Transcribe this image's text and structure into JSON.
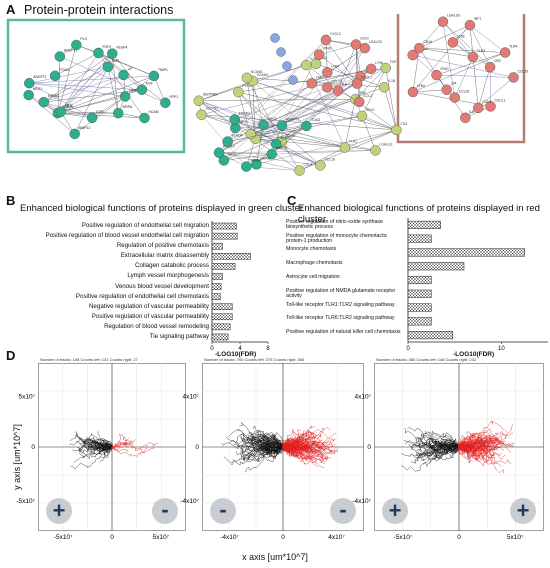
{
  "panel_a": {
    "letter": "A",
    "title": "Protein-protein interactions",
    "cluster_colors": {
      "green": "#2eae8c",
      "red": "#e07a75",
      "yellowgreen": "#bfd37a",
      "blue": "#8aa6e0",
      "gray": "#9a9a9a"
    },
    "box_colors": {
      "green_box": "#59b89a",
      "red_box": "#b57d72"
    },
    "green_nodes": [
      "SPP1",
      "MMP13",
      "HCAM",
      "SIRPA",
      "IGF2",
      "MMP12",
      "PLAUR",
      "MET",
      "ERBB3",
      "NRG1",
      "ANGPT1",
      "ITGA3",
      "ANGPT2",
      "PLG",
      "FGF2",
      "IGF1",
      "VEGFA",
      "LIF",
      "TIMP1",
      "EGF"
    ],
    "red_nodes": [
      "CCL20",
      "CXCL1",
      "CCL2",
      "IL6",
      "CCL26",
      "LTA",
      "LTB4",
      "IFNG",
      "CXCL2",
      "CD14",
      "LGALS3",
      "LY96",
      "IRF7",
      "TLR2",
      "TLR4",
      "CR2"
    ],
    "other_nodes": [
      "CD4",
      "LGALS3",
      "TLR1",
      "CCL18",
      "CCL4",
      "CCL3",
      "CCL22",
      "ACKR1",
      "SLC7A1",
      "SERPINE",
      "PTX3",
      "VCAM1",
      "NCAM1",
      "ICAM1",
      "CD2",
      "FGF",
      "TNF",
      "IL1B",
      "SELE"
    ]
  },
  "panel_b": {
    "letter": "B",
    "title": "Enhanced biological functions of proteins displayed in green cluster",
    "chart_data": {
      "type": "bar",
      "orientation": "horizontal",
      "categories": [
        "Positive regulation of endothelial cell migration",
        "Positive regulation of blood vessel endothelial cell migration",
        "Regulation of positive chemotaxis",
        "Extracellular matrix disassembly",
        "Collagen catabolic process",
        "Lymph vessel morphogenesis",
        "Venous blood vessel development",
        "Positive regulation of endothelial cell chemotaxis",
        "Negative regulation of vascular permeability",
        "Positive regulation of vascular permeability",
        "Regulation of blood vessel remodeling",
        "Tie signaling pathway"
      ],
      "values": [
        3.5,
        3.6,
        1.5,
        5.5,
        3.3,
        1.5,
        1.3,
        1.2,
        2.9,
        2.9,
        2.6,
        2.3
      ],
      "xlabel": "-LOG10(FDR)",
      "xlim": [
        0,
        8
      ],
      "xticks": [
        "0",
        "4",
        "8"
      ]
    }
  },
  "panel_c": {
    "letter": "C",
    "title": "Enhanced biological functions of proteins displayed in red cluster",
    "chart_data": {
      "type": "bar",
      "orientation": "horizontal",
      "categories": [
        "Positive regulation of nitric-oxide synthase biosynthetic process",
        "Positive regulation of monocyte chemotactic protein-1 production",
        "Monocyte chemotaxis",
        "Macrophage chemotaxis",
        "Astrocyte cell migration",
        "Positive regulation of NMDA glutamate receptor activity",
        "Toll-like receptor TLR1:TLR2 signaling pathway",
        "Toll-like receptor TLR6:TLR2 signaling pathway",
        "Positive regulation of natural killer cell chemotaxis"
      ],
      "values": [
        3.5,
        2.5,
        12.5,
        6.0,
        2.5,
        2.5,
        2.5,
        2.5,
        4.8
      ],
      "xlabel": "-LOG10(FDR)",
      "xlim": [
        0,
        15
      ],
      "xticks": [
        "0",
        "10"
      ]
    }
  },
  "panel_d": {
    "letter": "D",
    "y_axis_label": "y axis [um*10^7]",
    "x_axis_label": "x axis [um*10^7]",
    "plots": [
      {
        "header": "Number of tracks: 158   Counts left: 131   Counts right: 27",
        "xticks": [
          "-5x10⁷",
          "0",
          "5x10⁷"
        ],
        "yticks": [
          "5x10⁷",
          "0",
          "-5x10⁷"
        ],
        "left_sign": "+",
        "right_sign": "-",
        "counts": {
          "tracks": 158,
          "left": 131,
          "right": 27
        },
        "black_bias": -1
      },
      {
        "header": "Number of tracks: 760   Counts left: 375   Counts right: 385",
        "xticks": [
          "-4x10⁷",
          "0",
          "4x10⁷"
        ],
        "yticks": [
          "4x10⁷",
          "0",
          "-4x10⁷"
        ],
        "left_sign": "-",
        "right_sign": "-",
        "counts": {
          "tracks": 760,
          "left": 375,
          "right": 385
        },
        "black_bias": 0
      },
      {
        "header": "Number of tracks: 380   Counts left: 148   Counts right: 232",
        "xticks": [
          "-5x10⁷",
          "0",
          "5x10⁷"
        ],
        "yticks": [
          "4x10⁷",
          "0",
          "-4x10⁷"
        ],
        "left_sign": "+",
        "right_sign": "+",
        "counts": {
          "tracks": 380,
          "left": 148,
          "right": 232
        },
        "black_bias": 1
      }
    ]
  }
}
